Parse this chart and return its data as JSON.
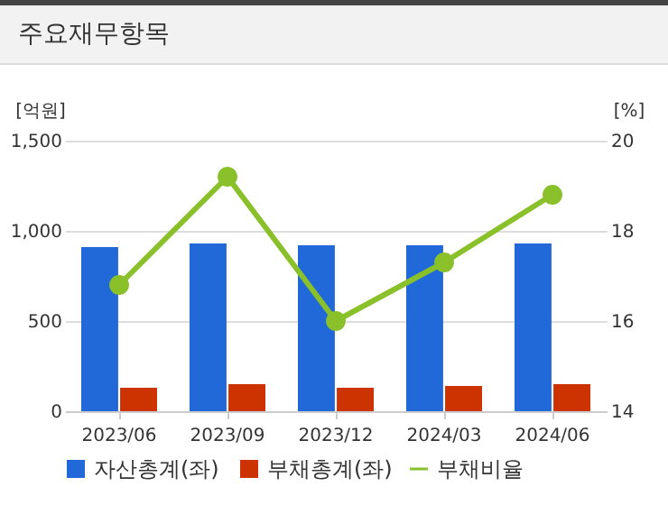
{
  "chart_data": {
    "type": "bar",
    "title": "주요재무항목",
    "ylabel": "[억원]",
    "y2label": "[%]",
    "categories": [
      "2023/06",
      "2023/09",
      "2023/12",
      "2024/03",
      "2024/06"
    ],
    "series": [
      {
        "name": "자산총계(좌)",
        "color": "#2169d8",
        "values": [
          910,
          930,
          920,
          920,
          930
        ]
      },
      {
        "name": "부채총계(좌)",
        "color": "#cc3300",
        "values": [
          130,
          150,
          130,
          140,
          150
        ]
      },
      {
        "name": "부채비율",
        "type": "line",
        "axis": "y2",
        "color": "#8ac02a",
        "values": [
          16.8,
          19.2,
          16.0,
          17.3,
          18.8
        ]
      }
    ],
    "ylim": [
      0,
      1500
    ],
    "yticks": [
      0,
      {
        "value": 500,
        "label": "500"
      },
      {
        "value": 1000,
        "label": "1,000"
      },
      {
        "value": 1500,
        "label": "1,500"
      }
    ],
    "y2lim": [
      14,
      20
    ],
    "y2ticks": [
      14,
      16,
      18,
      20
    ],
    "grid": "y",
    "legend": "bottom",
    "marker": "circle"
  }
}
